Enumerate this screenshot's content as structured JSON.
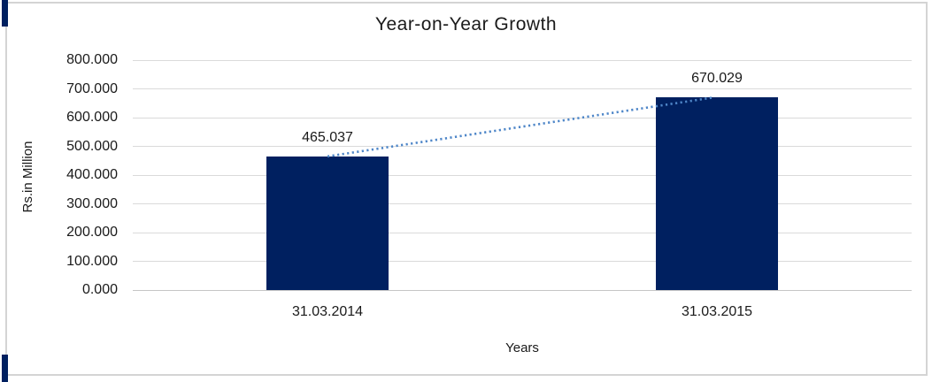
{
  "chart_data": {
    "type": "bar",
    "title": "Year-on-Year Growth",
    "categories": [
      "31.03.2014",
      "31.03.2015"
    ],
    "values": [
      465.037,
      670.029
    ],
    "data_labels": [
      "465.037",
      "670.029"
    ],
    "xlabel": "Years",
    "ylabel": "Rs.in Million",
    "ylim": [
      0,
      800
    ],
    "ytick_step": 100,
    "ytick_labels": [
      "800.000",
      "700.000",
      "600.000",
      "500.000",
      "400.000",
      "300.000",
      "200.000",
      "100.000",
      "0.000"
    ],
    "grid": true,
    "legend": false,
    "bar_color": "#002060",
    "accent_color": "#002060",
    "trendline": {
      "type": "linear",
      "style": "dotted",
      "color": "#4e86c8"
    }
  }
}
